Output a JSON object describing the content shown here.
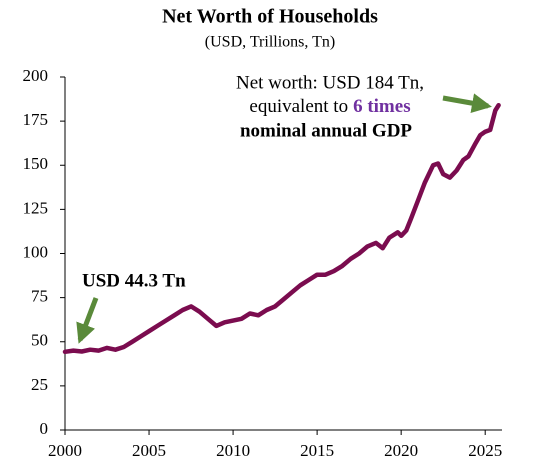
{
  "chart_data": {
    "type": "line",
    "title": "Net Worth of Households",
    "subtitle": "(USD, Trillions, Tn)",
    "annotations": {
      "start": "USD 44.3 Tn",
      "peak_line1": "Net worth: USD 184 Tn,",
      "peak_line2": "equivalent to",
      "peak_highlight": "6 times",
      "peak_line3": "nominal annual GDP"
    },
    "color": "#7b0c4f",
    "highlight_color": "#7030a0",
    "arrow_color": "#5a8a3a",
    "x": [
      2000.0,
      2000.5,
      2001.0,
      2001.5,
      2002.0,
      2002.5,
      2003.0,
      2003.5,
      2004.0,
      2004.5,
      2005.0,
      2005.5,
      2006.0,
      2006.5,
      2007.0,
      2007.5,
      2008.0,
      2008.5,
      2009.0,
      2009.5,
      2010.0,
      2010.5,
      2011.0,
      2011.5,
      2012.0,
      2012.5,
      2013.0,
      2013.5,
      2014.0,
      2014.5,
      2015.0,
      2015.5,
      2016.0,
      2016.5,
      2017.0,
      2017.5,
      2018.0,
      2018.5,
      2018.9,
      2019.3,
      2019.8,
      2020.0,
      2020.3,
      2020.6,
      2021.0,
      2021.4,
      2021.9,
      2022.2,
      2022.5,
      2022.9,
      2023.3,
      2023.7,
      2024.0,
      2024.4,
      2024.7,
      2025.0,
      2025.3,
      2025.6,
      2025.8
    ],
    "values": [
      44.3,
      45,
      44.5,
      45.5,
      45,
      46.5,
      45.5,
      47,
      50,
      53,
      56,
      59,
      62,
      65,
      68,
      70,
      67,
      63,
      59,
      61,
      62,
      63,
      66,
      65,
      68,
      70,
      74,
      78,
      82,
      85,
      88,
      88,
      90,
      93,
      97,
      100,
      104,
      106,
      103,
      109,
      112,
      110,
      113,
      120,
      130,
      140,
      150,
      151,
      145,
      143,
      147,
      153,
      155,
      162,
      167,
      169,
      170,
      181,
      184
    ],
    "xlim": [
      2000,
      2026
    ],
    "xticks": [
      2000,
      2005,
      2010,
      2015,
      2020,
      2025
    ],
    "ylim": [
      0,
      200
    ],
    "yticks": [
      0,
      25,
      50,
      75,
      100,
      125,
      150,
      175,
      200
    ]
  }
}
